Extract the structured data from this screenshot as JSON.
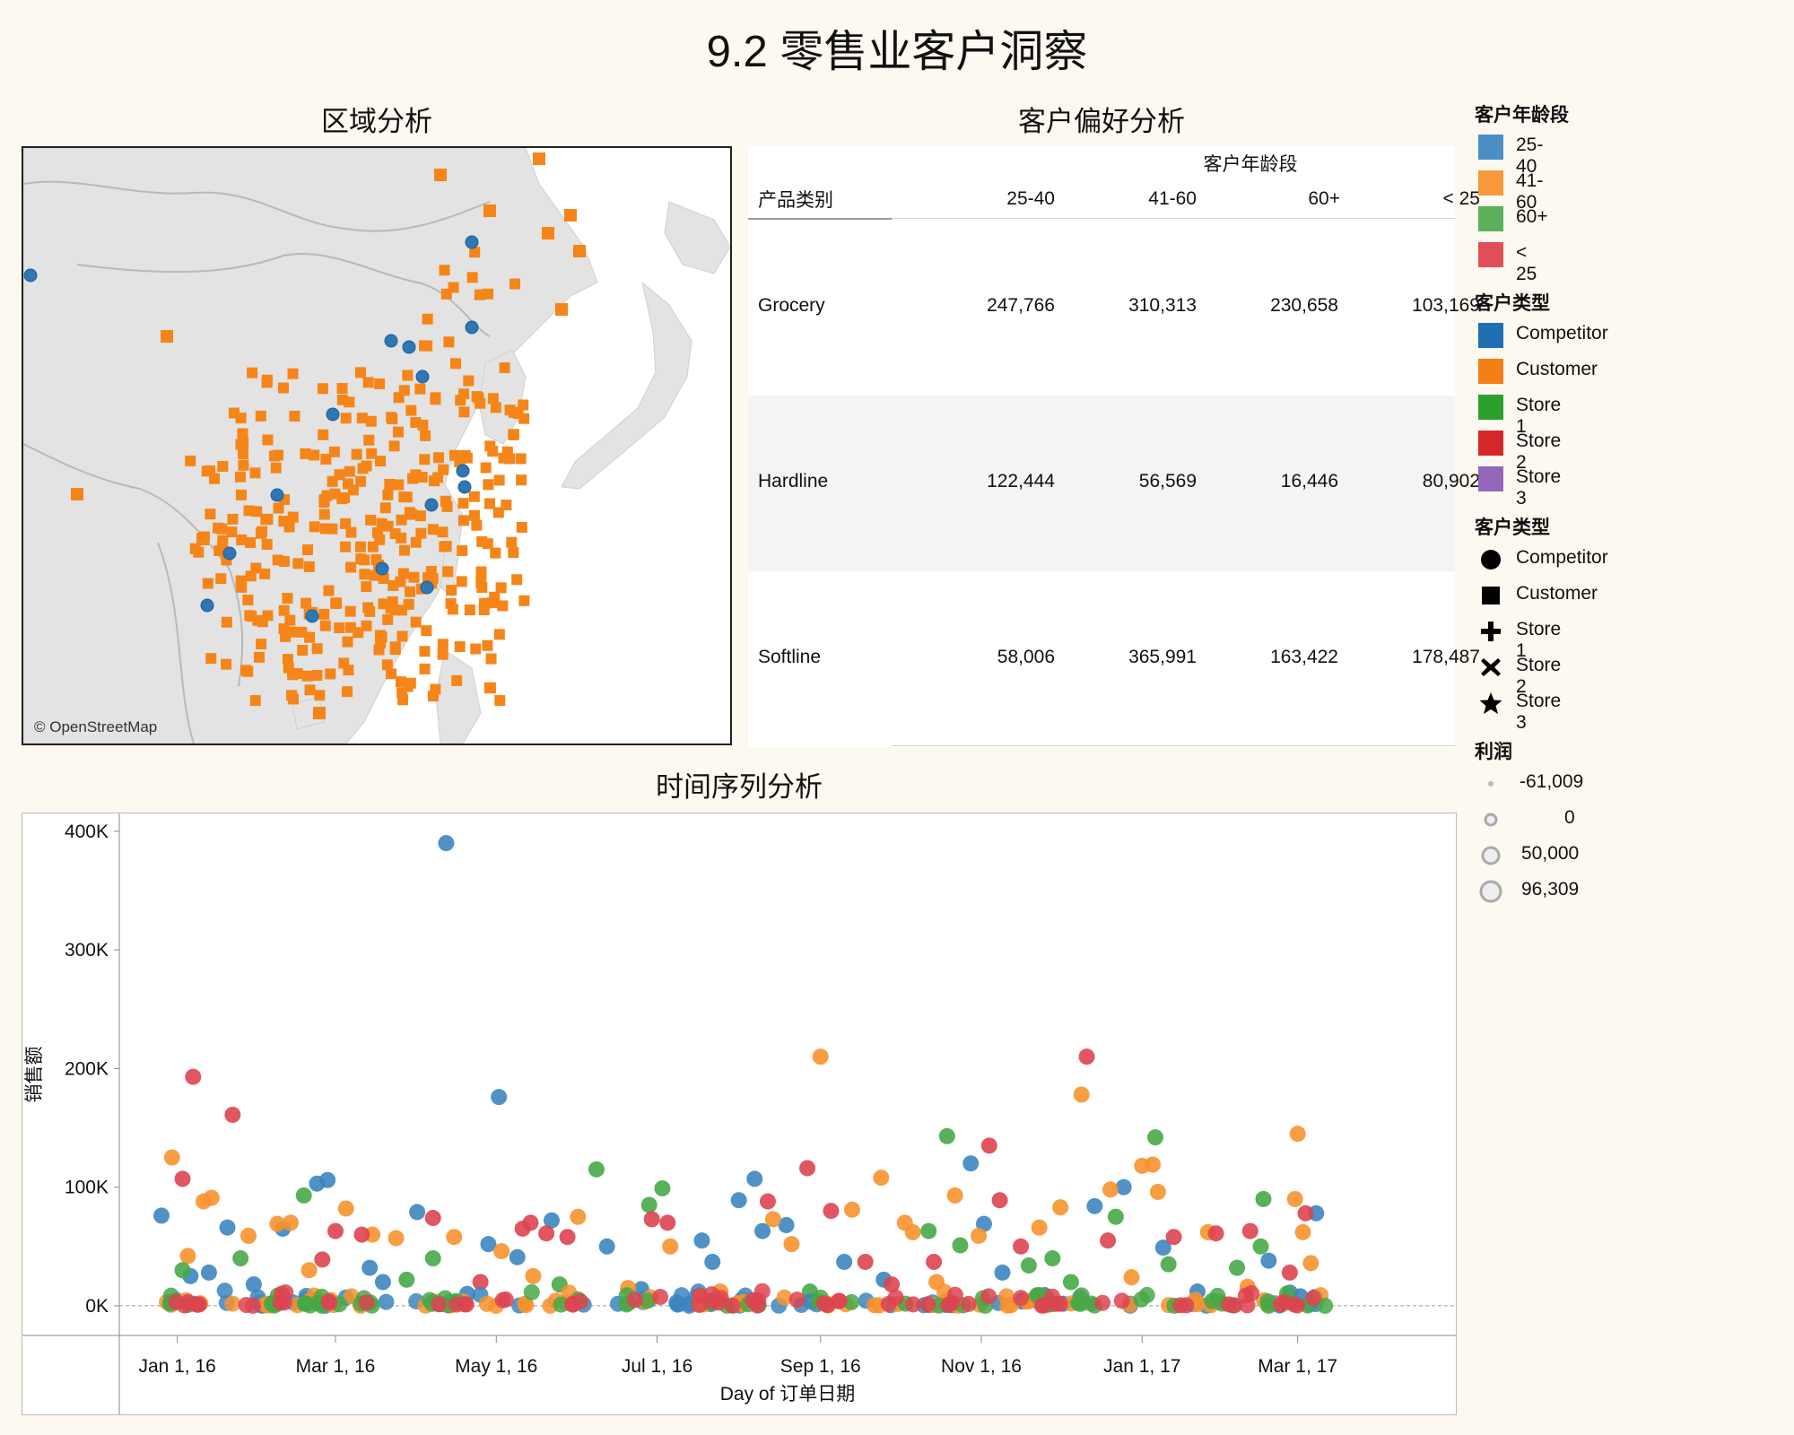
{
  "title": "9.2 零售业客户洞察",
  "sections": {
    "region": "区域分析",
    "preference": "客户偏好分析",
    "timeseries": "时间序列分析"
  },
  "map": {
    "attribution": "© OpenStreetMap",
    "customer_color": "#f58518",
    "competitor_color": "#2f77b4"
  },
  "preference_table": {
    "column_group": "客户年龄段",
    "row_header": "产品类别",
    "columns": [
      "25-40",
      "41-60",
      "60+",
      "< 25"
    ],
    "rows": [
      {
        "category": "Grocery",
        "values": [
          "247,766",
          "310,313",
          "230,658",
          "103,169"
        ]
      },
      {
        "category": "Hardline",
        "values": [
          "122,444",
          "56,569",
          "16,446",
          "80,902"
        ]
      },
      {
        "category": "Softline",
        "values": [
          "58,006",
          "365,991",
          "163,422",
          "178,487"
        ]
      }
    ]
  },
  "legends": {
    "age": {
      "title": "客户年龄段",
      "items": [
        {
          "label": "25-40",
          "color": "#4c8fc4"
        },
        {
          "label": "41-60",
          "color": "#f7983a"
        },
        {
          "label": "60+",
          "color": "#5bb15a"
        },
        {
          "label": "< 25",
          "color": "#e04f55"
        }
      ]
    },
    "type_color": {
      "title": "客户类型",
      "items": [
        {
          "label": "Competitor",
          "color": "#1f6fb2"
        },
        {
          "label": "Customer",
          "color": "#f57f17"
        },
        {
          "label": "Store 1",
          "color": "#2ca02c"
        },
        {
          "label": "Store 2",
          "color": "#d62728"
        },
        {
          "label": "Store 3",
          "color": "#9467bd"
        }
      ]
    },
    "type_shape": {
      "title": "客户类型",
      "items": [
        {
          "label": "Competitor",
          "icon": "circle-icon"
        },
        {
          "label": "Customer",
          "icon": "square-icon"
        },
        {
          "label": "Store 1",
          "icon": "plus-icon"
        },
        {
          "label": "Store 2",
          "icon": "cross-icon"
        },
        {
          "label": "Store 3",
          "icon": "star-icon"
        }
      ]
    },
    "profit": {
      "title": "利润",
      "items": [
        {
          "label": "-61,009"
        },
        {
          "label": "0"
        },
        {
          "label": "50,000"
        },
        {
          "label": "96,309"
        }
      ]
    }
  },
  "chart_data": {
    "type": "scatter",
    "title": "时间序列分析",
    "xlabel": "Day of 订单日期",
    "ylabel": "销售额",
    "xlim": [
      "2015-12-10",
      "2017-04-30"
    ],
    "ylim": [
      -25000,
      415000
    ],
    "y_ticks": [
      {
        "value": 0,
        "label": "0K"
      },
      {
        "value": 100000,
        "label": "100K"
      },
      {
        "value": 200000,
        "label": "200K"
      },
      {
        "value": 300000,
        "label": "300K"
      },
      {
        "value": 400000,
        "label": "400K"
      }
    ],
    "x_ticks": [
      {
        "date": "2016-01-01",
        "label": "Jan 1, 16"
      },
      {
        "date": "2016-03-01",
        "label": "Mar 1, 16"
      },
      {
        "date": "2016-05-01",
        "label": "May 1, 16"
      },
      {
        "date": "2016-07-01",
        "label": "Jul 1, 16"
      },
      {
        "date": "2016-09-01",
        "label": "Sep 1, 16"
      },
      {
        "date": "2016-11-01",
        "label": "Nov 1, 16"
      },
      {
        "date": "2017-01-01",
        "label": "Jan 1, 17"
      },
      {
        "date": "2017-03-01",
        "label": "Mar 1, 17"
      }
    ],
    "color_by": "客户年龄段",
    "series": [
      {
        "name": "25-40",
        "color": "#3d85c0",
        "points": [
          [
            "2015-12-26",
            76000
          ],
          [
            "2016-01-06",
            25000
          ],
          [
            "2016-01-13",
            28000
          ],
          [
            "2016-01-20",
            66000
          ],
          [
            "2016-02-10",
            65000
          ],
          [
            "2016-02-23",
            103000
          ],
          [
            "2016-02-27",
            106000
          ],
          [
            "2016-03-14",
            32000
          ],
          [
            "2016-03-19",
            20000
          ],
          [
            "2016-04-01",
            79000
          ],
          [
            "2016-04-12",
            390000
          ],
          [
            "2016-04-28",
            52000
          ],
          [
            "2016-05-02",
            176000
          ],
          [
            "2016-05-09",
            41000
          ],
          [
            "2016-05-22",
            72000
          ],
          [
            "2016-06-12",
            50000
          ],
          [
            "2016-07-18",
            55000
          ],
          [
            "2016-07-22",
            37000
          ],
          [
            "2016-08-01",
            89000
          ],
          [
            "2016-08-07",
            107000
          ],
          [
            "2016-08-10",
            63000
          ],
          [
            "2016-08-19",
            68000
          ],
          [
            "2016-09-10",
            37000
          ],
          [
            "2016-10-28",
            120000
          ],
          [
            "2016-11-02",
            69000
          ],
          [
            "2016-11-09",
            28000
          ],
          [
            "2016-12-14",
            84000
          ],
          [
            "2016-12-25",
            100000
          ],
          [
            "2017-01-09",
            49000
          ],
          [
            "2017-02-18",
            38000
          ],
          [
            "2017-03-08",
            78000
          ],
          [
            "2016-01-30",
            18000
          ],
          [
            "2016-04-20",
            10000
          ],
          [
            "2016-06-25",
            14000
          ],
          [
            "2016-09-25",
            22000
          ],
          [
            "2016-11-25",
            9000
          ],
          [
            "2017-01-22",
            12000
          ],
          [
            "2017-03-02",
            8000
          ]
        ]
      },
      {
        "name": "41-60",
        "color": "#f7922e",
        "points": [
          [
            "2015-12-30",
            125000
          ],
          [
            "2016-01-05",
            42000
          ],
          [
            "2016-01-11",
            88000
          ],
          [
            "2016-01-14",
            91000
          ],
          [
            "2016-01-28",
            59000
          ],
          [
            "2016-02-08",
            69000
          ],
          [
            "2016-02-13",
            70000
          ],
          [
            "2016-03-05",
            82000
          ],
          [
            "2016-03-15",
            60000
          ],
          [
            "2016-03-24",
            57000
          ],
          [
            "2016-04-15",
            58000
          ],
          [
            "2016-05-03",
            46000
          ],
          [
            "2016-06-01",
            75000
          ],
          [
            "2016-07-06",
            50000
          ],
          [
            "2016-08-14",
            73000
          ],
          [
            "2016-08-21",
            52000
          ],
          [
            "2016-09-01",
            210000
          ],
          [
            "2016-09-13",
            81000
          ],
          [
            "2016-09-24",
            108000
          ],
          [
            "2016-10-03",
            70000
          ],
          [
            "2016-10-06",
            62000
          ],
          [
            "2016-10-22",
            93000
          ],
          [
            "2016-10-31",
            59000
          ],
          [
            "2016-11-23",
            66000
          ],
          [
            "2016-12-01",
            83000
          ],
          [
            "2016-12-09",
            178000
          ],
          [
            "2016-12-20",
            98000
          ],
          [
            "2017-01-01",
            118000
          ],
          [
            "2017-01-05",
            119000
          ],
          [
            "2017-01-07",
            96000
          ],
          [
            "2017-01-26",
            62000
          ],
          [
            "2017-03-01",
            145000
          ],
          [
            "2017-02-28",
            90000
          ],
          [
            "2017-03-03",
            62000
          ],
          [
            "2017-03-06",
            36000
          ],
          [
            "2016-02-20",
            30000
          ],
          [
            "2016-05-15",
            25000
          ],
          [
            "2016-06-20",
            15000
          ],
          [
            "2016-07-25",
            12000
          ],
          [
            "2016-10-15",
            20000
          ],
          [
            "2016-12-28",
            24000
          ],
          [
            "2017-02-10",
            16000
          ]
        ]
      },
      {
        "name": "60+",
        "color": "#47a847",
        "points": [
          [
            "2016-01-03",
            30000
          ],
          [
            "2016-01-25",
            40000
          ],
          [
            "2016-02-18",
            93000
          ],
          [
            "2016-04-07",
            40000
          ],
          [
            "2016-06-08",
            115000
          ],
          [
            "2016-06-28",
            85000
          ],
          [
            "2016-07-03",
            99000
          ],
          [
            "2016-10-12",
            63000
          ],
          [
            "2016-10-19",
            143000
          ],
          [
            "2016-10-24",
            51000
          ],
          [
            "2016-11-19",
            34000
          ],
          [
            "2016-11-28",
            40000
          ],
          [
            "2016-12-22",
            75000
          ],
          [
            "2017-01-06",
            142000
          ],
          [
            "2017-01-11",
            35000
          ],
          [
            "2017-02-06",
            32000
          ],
          [
            "2017-02-15",
            50000
          ],
          [
            "2017-02-16",
            90000
          ],
          [
            "2016-03-28",
            22000
          ],
          [
            "2016-05-25",
            18000
          ],
          [
            "2016-08-28",
            12000
          ],
          [
            "2016-12-05",
            20000
          ]
        ]
      },
      {
        "name": "< 25",
        "color": "#dd4450",
        "points": [
          [
            "2016-01-03",
            107000
          ],
          [
            "2016-01-07",
            193000
          ],
          [
            "2016-01-22",
            161000
          ],
          [
            "2016-02-25",
            39000
          ],
          [
            "2016-03-01",
            63000
          ],
          [
            "2016-03-11",
            60000
          ],
          [
            "2016-04-07",
            74000
          ],
          [
            "2016-05-11",
            65000
          ],
          [
            "2016-05-14",
            70000
          ],
          [
            "2016-05-20",
            61000
          ],
          [
            "2016-05-28",
            58000
          ],
          [
            "2016-06-29",
            73000
          ],
          [
            "2016-07-05",
            70000
          ],
          [
            "2016-08-12",
            88000
          ],
          [
            "2016-08-27",
            116000
          ],
          [
            "2016-09-05",
            80000
          ],
          [
            "2016-09-18",
            37000
          ],
          [
            "2016-10-14",
            37000
          ],
          [
            "2016-11-04",
            135000
          ],
          [
            "2016-11-08",
            89000
          ],
          [
            "2016-11-16",
            50000
          ],
          [
            "2016-12-11",
            210000
          ],
          [
            "2016-12-19",
            55000
          ],
          [
            "2017-01-13",
            58000
          ],
          [
            "2017-01-29",
            61000
          ],
          [
            "2017-02-11",
            63000
          ],
          [
            "2017-03-04",
            78000
          ],
          [
            "2017-02-26",
            28000
          ],
          [
            "2016-04-25",
            20000
          ],
          [
            "2016-09-28",
            18000
          ]
        ]
      }
    ]
  }
}
